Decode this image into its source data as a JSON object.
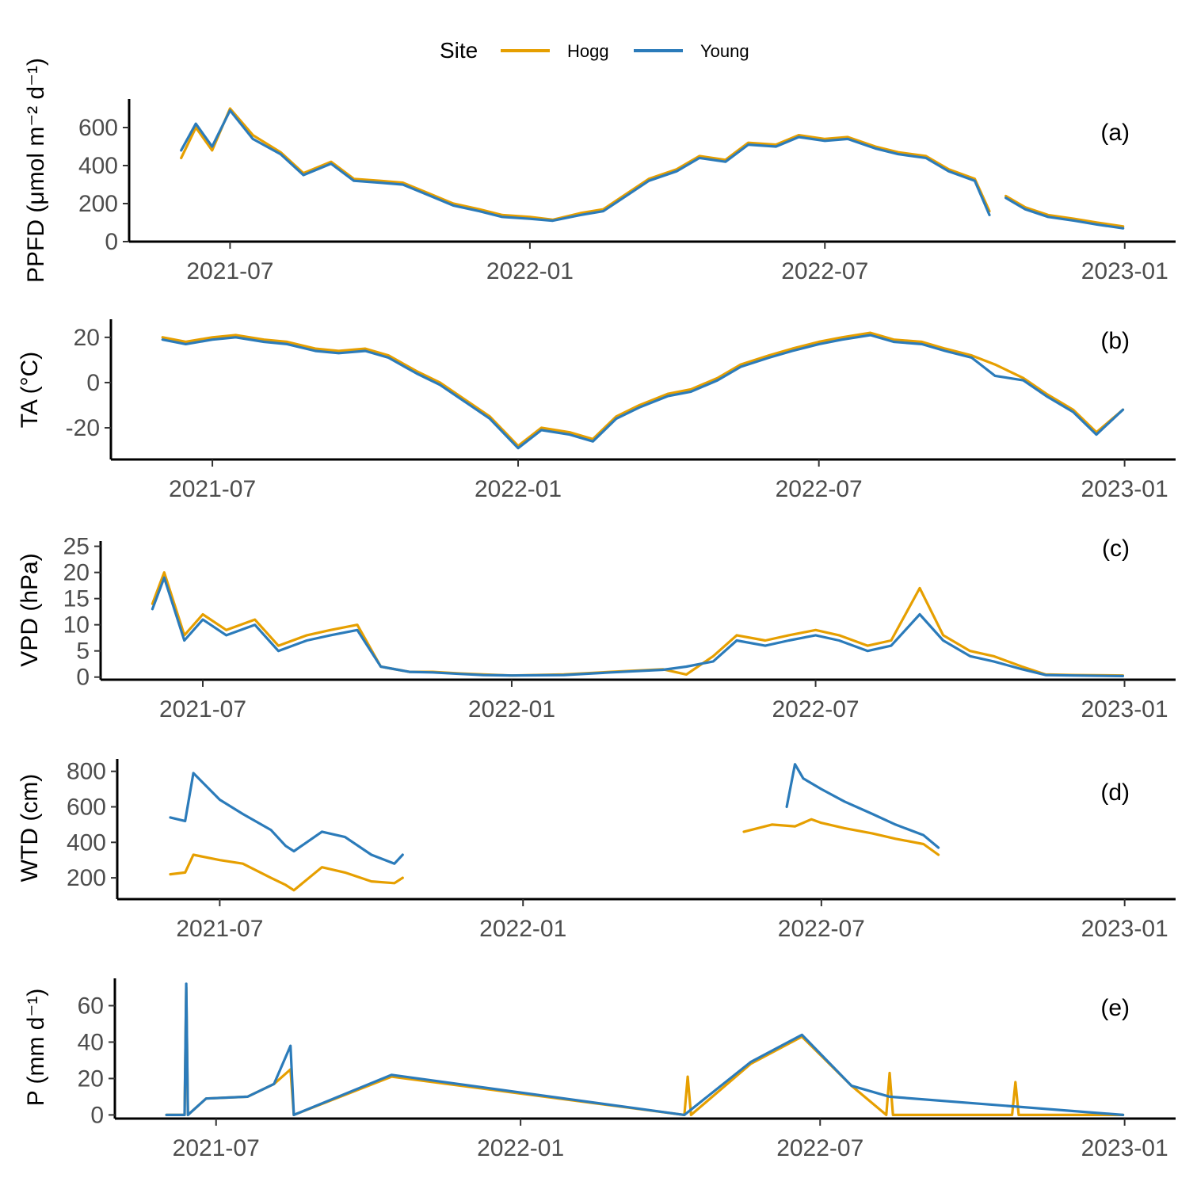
{
  "legend": {
    "title": "Site",
    "items": [
      {
        "label": "Hogg",
        "color": "#E69F00"
      },
      {
        "label": "Young",
        "color": "#2B7BBA"
      }
    ]
  },
  "chart_data": [
    {
      "type": "line",
      "tag": "(a)",
      "ylabel": "PPFD (μmol m⁻² d⁻¹)",
      "ylim": [
        0,
        750
      ],
      "yticks": [
        0,
        200,
        400,
        600
      ],
      "xlim": [
        "2021-05-20",
        "2023-01-05"
      ],
      "xticks": [
        "2021-07-01",
        "2022-01-01",
        "2022-07-01",
        "2023-01-01"
      ],
      "xticklabels": [
        "2021-07",
        "2022-01",
        "2022-07",
        "2023-01"
      ],
      "series": [
        {
          "name": "Hogg",
          "color": "#E69F00",
          "x": [
            "2021-06-01",
            "2021-06-10",
            "2021-06-20",
            "2021-07-01",
            "2021-07-15",
            "2021-08-01",
            "2021-08-15",
            "2021-09-01",
            "2021-09-15",
            "2021-10-01",
            "2021-10-15",
            "2021-11-01",
            "2021-11-15",
            "2021-12-01",
            "2021-12-15",
            "2022-01-01",
            "2022-01-15",
            "2022-02-01",
            "2022-02-15",
            "2022-03-01",
            "2022-03-15",
            "2022-04-01",
            "2022-04-15",
            "2022-05-01",
            "2022-05-15",
            "2022-06-01",
            "2022-06-15",
            "2022-07-01",
            "2022-07-15",
            "2022-08-01",
            "2022-08-15",
            "2022-09-01",
            "2022-09-15",
            "2022-10-01",
            "2022-10-10",
            null,
            "2022-10-20",
            "2022-11-01",
            "2022-11-15",
            "2022-12-01",
            "2022-12-15",
            "2022-12-31"
          ],
          "y": [
            440,
            600,
            480,
            700,
            560,
            470,
            360,
            420,
            330,
            320,
            310,
            250,
            200,
            170,
            140,
            130,
            115,
            150,
            170,
            250,
            330,
            380,
            450,
            430,
            520,
            510,
            560,
            540,
            550,
            500,
            470,
            450,
            380,
            330,
            160,
            null,
            240,
            180,
            140,
            120,
            100,
            80
          ]
        },
        {
          "name": "Young",
          "color": "#2B7BBA",
          "x": [
            "2021-06-01",
            "2021-06-10",
            "2021-06-20",
            "2021-07-01",
            "2021-07-15",
            "2021-08-01",
            "2021-08-15",
            "2021-09-01",
            "2021-09-15",
            "2021-10-01",
            "2021-10-15",
            "2021-11-01",
            "2021-11-15",
            "2021-12-01",
            "2021-12-15",
            "2022-01-01",
            "2022-01-15",
            "2022-02-01",
            "2022-02-15",
            "2022-03-01",
            "2022-03-15",
            "2022-04-01",
            "2022-04-15",
            "2022-05-01",
            "2022-05-15",
            "2022-06-01",
            "2022-06-15",
            "2022-07-01",
            "2022-07-15",
            "2022-08-01",
            "2022-08-15",
            "2022-09-01",
            "2022-09-15",
            "2022-10-01",
            "2022-10-10",
            null,
            "2022-10-20",
            "2022-11-01",
            "2022-11-15",
            "2022-12-01",
            "2022-12-15",
            "2022-12-31"
          ],
          "y": [
            480,
            620,
            500,
            690,
            540,
            460,
            350,
            410,
            320,
            310,
            300,
            240,
            190,
            160,
            130,
            120,
            110,
            140,
            160,
            240,
            320,
            370,
            440,
            420,
            510,
            500,
            550,
            530,
            540,
            490,
            460,
            440,
            370,
            320,
            140,
            null,
            230,
            170,
            130,
            110,
            90,
            70
          ]
        }
      ]
    },
    {
      "type": "line",
      "tag": "(b)",
      "ylabel": "TA (°C)",
      "ylim": [
        -34,
        28
      ],
      "yticks": [
        -20,
        0,
        20
      ],
      "xlim": [
        "2021-05-20",
        "2023-01-05"
      ],
      "xticks": [
        "2021-07-01",
        "2022-01-01",
        "2022-07-01",
        "2023-01-01"
      ],
      "xticklabels": [
        "2021-07",
        "2022-01",
        "2022-07",
        "2023-01"
      ],
      "series": [
        {
          "name": "Hogg",
          "color": "#E69F00",
          "x": [
            "2021-06-01",
            "2021-06-15",
            "2021-07-01",
            "2021-07-15",
            "2021-08-01",
            "2021-08-15",
            "2021-09-01",
            "2021-09-15",
            "2021-10-01",
            "2021-10-15",
            "2021-11-01",
            "2021-11-15",
            "2021-12-01",
            "2021-12-15",
            "2022-01-01",
            "2022-01-15",
            "2022-02-01",
            "2022-02-15",
            "2022-03-01",
            "2022-03-15",
            "2022-04-01",
            "2022-04-15",
            "2022-05-01",
            "2022-05-15",
            "2022-06-01",
            "2022-06-15",
            "2022-07-01",
            "2022-07-15",
            "2022-08-01",
            "2022-08-15",
            "2022-09-01",
            "2022-09-15",
            "2022-10-01",
            "2022-10-15",
            "2022-11-01",
            "2022-11-15",
            "2022-12-01",
            "2022-12-15",
            "2022-12-31"
          ],
          "y": [
            20,
            18,
            20,
            21,
            19,
            18,
            15,
            14,
            15,
            12,
            5,
            0,
            -8,
            -15,
            -28,
            -20,
            -22,
            -25,
            -15,
            -10,
            -5,
            -3,
            2,
            8,
            12,
            15,
            18,
            20,
            22,
            19,
            18,
            15,
            12,
            8,
            2,
            -5,
            -12,
            -22,
            -12
          ]
        },
        {
          "name": "Young",
          "color": "#2B7BBA",
          "x": [
            "2021-06-01",
            "2021-06-15",
            "2021-07-01",
            "2021-07-15",
            "2021-08-01",
            "2021-08-15",
            "2021-09-01",
            "2021-09-15",
            "2021-10-01",
            "2021-10-15",
            "2021-11-01",
            "2021-11-15",
            "2021-12-01",
            "2021-12-15",
            "2022-01-01",
            "2022-01-15",
            "2022-02-01",
            "2022-02-15",
            "2022-03-01",
            "2022-03-15",
            "2022-04-01",
            "2022-04-15",
            "2022-05-01",
            "2022-05-15",
            "2022-06-01",
            "2022-06-15",
            "2022-07-01",
            "2022-07-15",
            "2022-08-01",
            "2022-08-15",
            "2022-09-01",
            "2022-09-15",
            "2022-10-01",
            "2022-10-15",
            "2022-11-01",
            "2022-11-15",
            "2022-12-01",
            "2022-12-15",
            "2022-12-31"
          ],
          "y": [
            19,
            17,
            19,
            20,
            18,
            17,
            14,
            13,
            14,
            11,
            4,
            -1,
            -9,
            -16,
            -29,
            -21,
            -23,
            -26,
            -16,
            -11,
            -6,
            -4,
            1,
            7,
            11,
            14,
            17,
            19,
            21,
            18,
            17,
            14,
            11,
            3,
            1,
            -6,
            -13,
            -23,
            -12
          ]
        }
      ]
    },
    {
      "type": "line",
      "tag": "(c)",
      "ylabel": "VPD (hPa)",
      "ylim": [
        -0.5,
        26
      ],
      "yticks": [
        0,
        5,
        10,
        15,
        20,
        25
      ],
      "xlim": [
        "2021-05-20",
        "2023-01-05"
      ],
      "xticks": [
        "2021-07-01",
        "2022-01-01",
        "2022-07-01",
        "2023-01-01"
      ],
      "xticklabels": [
        "2021-07",
        "2022-01",
        "2022-07",
        "2023-01"
      ],
      "series": [
        {
          "name": "Hogg",
          "color": "#E69F00",
          "x": [
            "2021-06-01",
            "2021-06-08",
            "2021-06-20",
            "2021-07-01",
            "2021-07-15",
            "2021-08-01",
            "2021-08-15",
            "2021-09-01",
            "2021-09-15",
            "2021-10-01",
            "2021-10-15",
            "2021-11-01",
            "2021-11-15",
            "2021-12-01",
            "2021-12-15",
            "2022-01-01",
            "2022-02-01",
            "2022-03-01",
            "2022-04-01",
            "2022-04-15",
            "2022-05-01",
            "2022-05-15",
            "2022-06-01",
            "2022-06-15",
            "2022-07-01",
            "2022-07-15",
            "2022-08-01",
            "2022-08-15",
            "2022-09-01",
            "2022-09-15",
            "2022-10-01",
            "2022-10-15",
            "2022-11-01",
            "2022-11-15",
            "2022-12-01",
            "2022-12-31"
          ],
          "y": [
            14,
            20,
            8,
            12,
            9,
            11,
            6,
            8,
            9,
            10,
            2,
            1,
            1,
            0.7,
            0.5,
            0.3,
            0.5,
            1,
            1.5,
            0.5,
            4,
            8,
            7,
            8,
            9,
            8,
            6,
            7,
            17,
            8,
            5,
            4,
            2,
            0.5,
            0.4,
            0.3
          ]
        },
        {
          "name": "Young",
          "color": "#2B7BBA",
          "x": [
            "2021-06-01",
            "2021-06-08",
            "2021-06-20",
            "2021-07-01",
            "2021-07-15",
            "2021-08-01",
            "2021-08-15",
            "2021-09-01",
            "2021-09-15",
            "2021-10-01",
            "2021-10-15",
            "2021-11-01",
            "2021-11-15",
            "2021-12-01",
            "2021-12-15",
            "2022-01-01",
            "2022-02-01",
            "2022-03-01",
            "2022-04-01",
            "2022-04-15",
            "2022-05-01",
            "2022-05-15",
            "2022-06-01",
            "2022-06-15",
            "2022-07-01",
            "2022-07-15",
            "2022-08-01",
            "2022-08-15",
            "2022-09-01",
            "2022-09-15",
            "2022-10-01",
            "2022-10-15",
            "2022-11-01",
            "2022-11-15",
            "2022-12-01",
            "2022-12-31"
          ],
          "y": [
            13,
            19,
            7,
            11,
            8,
            10,
            5,
            7,
            8,
            9,
            2,
            1,
            0.9,
            0.6,
            0.4,
            0.3,
            0.4,
            0.9,
            1.4,
            2,
            3,
            7,
            6,
            7,
            8,
            7,
            5,
            6,
            12,
            7,
            4,
            3,
            1.5,
            0.4,
            0.3,
            0.2
          ]
        }
      ]
    },
    {
      "type": "line",
      "tag": "(d)",
      "ylabel": "WTD (cm)",
      "ylim": [
        80,
        870
      ],
      "yticks": [
        200,
        400,
        600,
        800
      ],
      "xlim": [
        "2021-05-20",
        "2023-01-05"
      ],
      "xticks": [
        "2021-07-01",
        "2022-01-01",
        "2022-07-01",
        "2023-01-01"
      ],
      "xticklabels": [
        "2021-07",
        "2022-01",
        "2022-07",
        "2023-01"
      ],
      "series": [
        {
          "name": "Hogg",
          "color": "#E69F00",
          "x": [
            "2021-06-01",
            "2021-06-10",
            "2021-06-15",
            "2021-07-01",
            "2021-07-15",
            "2021-08-01",
            "2021-08-10",
            "2021-08-15",
            "2021-09-01",
            "2021-09-15",
            "2021-10-01",
            "2021-10-15",
            "2021-10-20",
            null,
            "2022-05-15",
            "2022-06-01",
            "2022-06-15",
            "2022-06-25",
            "2022-07-01",
            "2022-07-15",
            "2022-08-01",
            "2022-08-15",
            "2022-09-01",
            "2022-09-10"
          ],
          "y": [
            220,
            230,
            330,
            300,
            280,
            200,
            160,
            130,
            260,
            230,
            180,
            170,
            200,
            null,
            460,
            500,
            490,
            530,
            510,
            480,
            450,
            420,
            390,
            330
          ]
        },
        {
          "name": "Young",
          "color": "#2B7BBA",
          "x": [
            "2021-06-01",
            "2021-06-10",
            "2021-06-15",
            "2021-07-01",
            "2021-07-15",
            "2021-08-01",
            "2021-08-10",
            "2021-08-15",
            "2021-09-01",
            "2021-09-15",
            "2021-10-01",
            "2021-10-15",
            "2021-10-20",
            null,
            "2022-06-10",
            "2022-06-15",
            "2022-06-20",
            "2022-07-01",
            "2022-07-15",
            "2022-08-01",
            "2022-08-15",
            "2022-09-01",
            "2022-09-10"
          ],
          "y": [
            540,
            520,
            790,
            640,
            560,
            470,
            380,
            350,
            460,
            430,
            330,
            280,
            330,
            null,
            600,
            840,
            760,
            700,
            630,
            560,
            500,
            440,
            370
          ]
        }
      ]
    },
    {
      "type": "line",
      "tag": "(e)",
      "ylabel": "P (mm d⁻¹)",
      "ylim": [
        -2,
        75
      ],
      "yticks": [
        0,
        20,
        40,
        60
      ],
      "xlim": [
        "2021-05-20",
        "2023-01-05"
      ],
      "xticks": [
        "2021-07-01",
        "2022-01-01",
        "2022-07-01",
        "2023-01-01"
      ],
      "xticklabels": [
        "2021-07",
        "2022-01",
        "2022-07",
        "2023-01"
      ],
      "series": [
        {
          "name": "Hogg",
          "color": "#E69F00",
          "x": [
            "2021-06-01",
            "2021-06-12",
            "2021-06-13",
            "2021-06-14",
            "2021-06-25",
            "2021-07-20",
            "2021-08-05",
            "2021-08-15",
            "2021-08-17",
            "2021-10-15",
            "2022-04-10",
            "2022-04-12",
            "2022-04-14",
            "2022-05-20",
            "2022-06-20",
            "2022-07-20",
            "2022-08-10",
            "2022-08-12",
            "2022-08-14",
            "2022-10-25",
            "2022-10-27",
            "2022-10-29",
            "2022-12-31"
          ],
          "y": [
            0,
            0,
            70,
            0,
            9,
            10,
            17,
            25,
            0,
            21,
            0,
            21,
            0,
            28,
            43,
            16,
            0,
            23,
            0,
            0,
            18,
            0,
            0
          ]
        },
        {
          "name": "Young",
          "color": "#2B7BBA",
          "x": [
            "2021-06-01",
            "2021-06-12",
            "2021-06-13",
            "2021-06-14",
            "2021-06-25",
            "2021-07-20",
            "2021-08-05",
            "2021-08-15",
            "2021-08-17",
            "2021-10-15",
            "2022-04-10",
            "2022-05-20",
            "2022-06-20",
            "2022-07-20",
            "2022-08-12",
            "2022-12-31"
          ],
          "y": [
            0,
            0,
            72,
            0,
            9,
            10,
            17,
            38,
            0,
            22,
            0,
            29,
            44,
            16,
            10,
            0
          ]
        }
      ]
    }
  ]
}
